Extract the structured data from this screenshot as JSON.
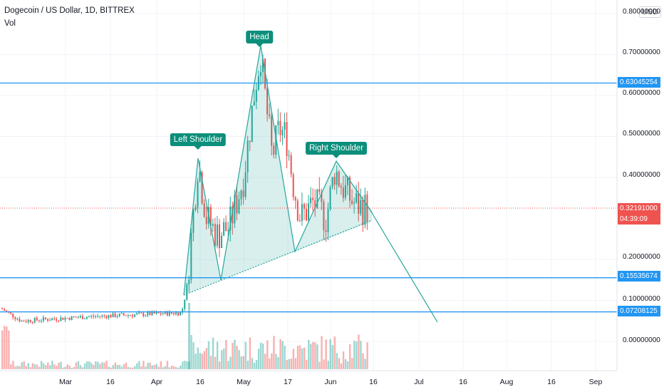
{
  "header": {
    "title": "Dogecoin / US Dollar, 1D, BITTREX",
    "volume_label": "Vol",
    "currency": "USD"
  },
  "annotations": {
    "head": "Head",
    "left_shoulder": "Left Shoulder",
    "right_shoulder": "Right Shoulder"
  },
  "price_scale": {
    "ticks": [
      "0.80000000",
      "0.70000000",
      "0.60000000",
      "0.50000000",
      "0.40000000",
      "0.20000000",
      "0.10000000",
      "0.00000000"
    ],
    "levels": [
      {
        "label": "0.63045254",
        "value": 0.63045254,
        "color": "#2196f3"
      },
      {
        "label": "0.15535674",
        "value": 0.15535674,
        "color": "#2196f3"
      },
      {
        "label": "0.07208125",
        "value": 0.07208125,
        "color": "#2196f3"
      }
    ],
    "last_price": {
      "label": "0.32191000",
      "value": 0.32191,
      "countdown": "04:39:09",
      "color": "#ef5350"
    }
  },
  "time_scale": [
    "Mar",
    "16",
    "Apr",
    "16",
    "May",
    "17",
    "Jun",
    "16",
    "Jul",
    "16",
    "Aug",
    "16",
    "Sep"
  ],
  "colors": {
    "up": "#26a69a",
    "down": "#ef5350",
    "pattern": "#26a69a",
    "pattern_fill": "rgba(38,166,154,0.18)",
    "level": "#2196f3"
  },
  "chart_data": {
    "type": "candlestick",
    "title": "Dogecoin / US Dollar, 1D, BITTREX",
    "ylabel": "",
    "ylim": [
      0,
      0.8
    ],
    "x": [
      "Mar",
      "16",
      "Apr",
      "16",
      "May",
      "17",
      "Jun",
      "16",
      "Jul",
      "16",
      "Aug",
      "16",
      "Sep"
    ],
    "horizontal_levels": [
      0.63045254,
      0.15535674,
      0.07208125
    ],
    "last_price": 0.32191,
    "pattern": "head-and-shoulders",
    "pattern_points": [
      {
        "label": "Left Shoulder",
        "value": 0.46
      },
      {
        "label": "Head",
        "value": 0.72
      },
      {
        "label": "Right Shoulder",
        "value": 0.44
      }
    ]
  }
}
